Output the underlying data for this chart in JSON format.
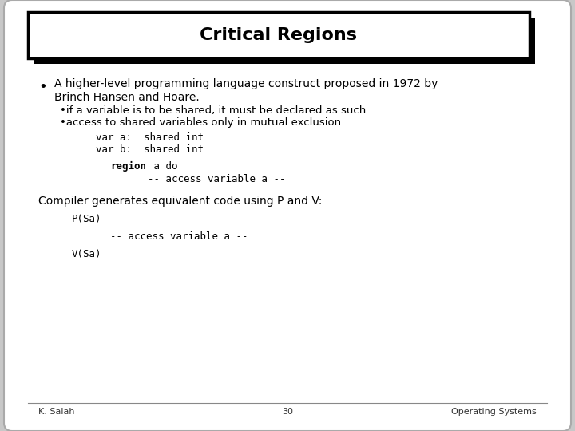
{
  "title": "Critical Regions",
  "bg_color": "#c8c8c8",
  "slide_bg": "#ffffff",
  "title_box_color": "#ffffff",
  "title_box_border": "#000000",
  "title_fontsize": 16,
  "title_font_weight": "bold",
  "body_fontsize": 10,
  "code_fontsize": 9,
  "footer_fontsize": 8,
  "bullet_main_line1": "A higher-level programming language construct proposed in 1972 by",
  "bullet_main_line2": "Brinch Hansen and Hoare.",
  "sub_bullets": [
    "if a variable is to be shared, it must be declared as such",
    "access to shared variables only in mutual exclusion"
  ],
  "code_var_a": "var a:  shared int",
  "code_var_b": "var b:  shared int",
  "code_region": "region",
  "code_region_rest": " a do",
  "code_access1": "    -- access variable a --",
  "compiler_text": "Compiler generates equivalent code using P and V:",
  "code_psa": "P(Sa)",
  "code_access2": "    -- access variable a --",
  "code_vsa": "V(Sa)",
  "footer_left": "K. Salah",
  "footer_center": "30",
  "footer_right": "Operating Systems"
}
